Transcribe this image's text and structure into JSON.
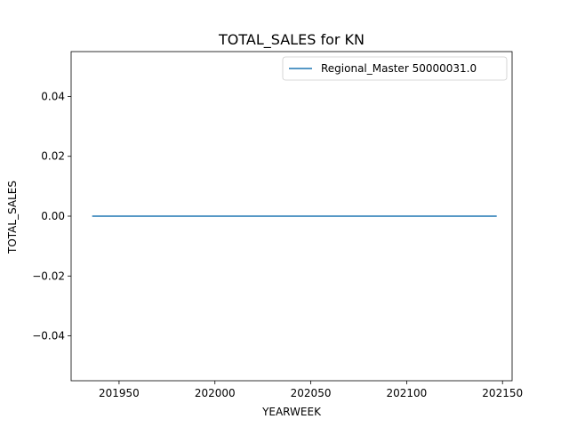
{
  "chart_data": {
    "type": "line",
    "title": "TOTAL_SALES for KN",
    "xlabel": "YEARWEEK",
    "ylabel": "TOTAL_SALES",
    "xlim": [
      201925,
      202155
    ],
    "ylim": [
      -0.055,
      0.055
    ],
    "x_ticks": [
      201950,
      202000,
      202050,
      202100,
      202150
    ],
    "x_tick_labels": [
      "201950",
      "202000",
      "202050",
      "202100",
      "202150"
    ],
    "y_ticks": [
      0.04,
      0.02,
      0.0,
      -0.02,
      -0.04
    ],
    "y_tick_labels": [
      "0.04",
      "0.02",
      "0.00",
      "−0.02",
      "−0.04"
    ],
    "grid": false,
    "legend_position": "top-right",
    "series": [
      {
        "name": "Regional_Master 50000031.0",
        "color": "#1f77b4",
        "x": [
          201936,
          202147
        ],
        "y": [
          0.0,
          0.0
        ]
      }
    ]
  }
}
